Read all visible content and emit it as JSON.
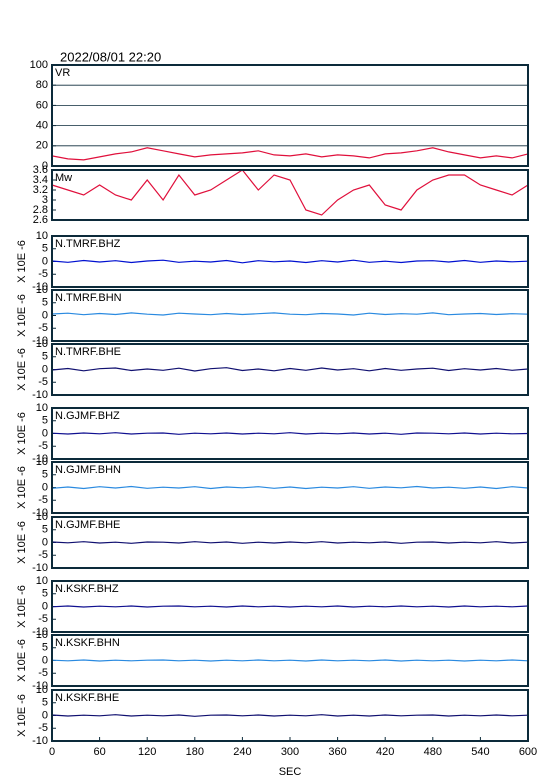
{
  "chart_data": [
    {
      "type": "line",
      "title": "2022/08/01 22:20",
      "xlim": [
        0,
        600
      ],
      "ylim": [
        0,
        100
      ],
      "yticks": [
        0,
        20,
        40,
        60,
        80,
        100
      ],
      "grid": true,
      "x": [
        0,
        20,
        40,
        60,
        80,
        100,
        120,
        140,
        160,
        180,
        200,
        220,
        240,
        260,
        280,
        300,
        320,
        340,
        360,
        380,
        400,
        420,
        440,
        460,
        480,
        500,
        520,
        540,
        560,
        580,
        600
      ],
      "series": [
        {
          "name": "VR",
          "color": "#e0103c",
          "values": [
            10,
            7,
            6,
            9,
            12,
            14,
            18,
            15,
            12,
            9,
            11,
            12,
            13,
            15,
            11,
            10,
            12,
            9,
            11,
            10,
            8,
            12,
            13,
            15,
            18,
            14,
            11,
            8,
            10,
            8,
            12
          ]
        }
      ]
    },
    {
      "type": "line",
      "xlim": [
        0,
        600
      ],
      "ylim": [
        2.6,
        3.6
      ],
      "yticks": [
        2.6,
        2.8,
        3.0,
        3.2,
        3.4,
        3.6
      ],
      "grid": false,
      "x": [
        0,
        20,
        40,
        60,
        80,
        100,
        120,
        140,
        160,
        180,
        200,
        220,
        240,
        260,
        280,
        300,
        320,
        340,
        360,
        380,
        400,
        420,
        440,
        460,
        480,
        500,
        520,
        540,
        560,
        580,
        600
      ],
      "series": [
        {
          "name": "Mw",
          "color": "#e0103c",
          "values": [
            3.3,
            3.2,
            3.1,
            3.3,
            3.1,
            3.0,
            3.4,
            3.0,
            3.5,
            3.1,
            3.2,
            3.4,
            3.6,
            3.2,
            3.5,
            3.4,
            2.8,
            2.7,
            3.0,
            3.2,
            3.3,
            2.9,
            2.8,
            3.2,
            3.4,
            3.5,
            3.5,
            3.3,
            3.2,
            3.1,
            3.3
          ]
        }
      ]
    },
    {
      "type": "line",
      "ylabel": "X 10E -6",
      "xlim": [
        0,
        600
      ],
      "ylim": [
        -10,
        10
      ],
      "yticks": [
        -10,
        -5,
        0,
        5,
        10
      ],
      "x": [
        0,
        20,
        40,
        60,
        80,
        100,
        120,
        140,
        160,
        180,
        200,
        220,
        240,
        260,
        280,
        300,
        320,
        340,
        360,
        380,
        400,
        420,
        440,
        460,
        480,
        500,
        520,
        540,
        560,
        580,
        600
      ],
      "series": [
        {
          "name": "N.TMRF.BHZ",
          "color": "#0010d0",
          "values": [
            0.2,
            -0.3,
            0.4,
            -0.2,
            0.3,
            -0.4,
            0.2,
            0.5,
            -0.3,
            0.1,
            -0.2,
            0.4,
            -0.5,
            0.3,
            -0.1,
            0.2,
            -0.4,
            0.3,
            -0.2,
            0.5,
            -0.3,
            0.1,
            -0.4,
            0.2,
            0.3,
            -0.2,
            0.4,
            -0.3,
            0.2,
            -0.1,
            0.1
          ]
        }
      ]
    },
    {
      "type": "line",
      "ylabel": "X 10E -6",
      "xlim": [
        0,
        600
      ],
      "ylim": [
        -10,
        10
      ],
      "yticks": [
        -10,
        -5,
        0,
        5,
        10
      ],
      "x": [
        0,
        20,
        40,
        60,
        80,
        100,
        120,
        140,
        160,
        180,
        200,
        220,
        240,
        260,
        280,
        300,
        320,
        340,
        360,
        380,
        400,
        420,
        440,
        460,
        480,
        500,
        520,
        540,
        560,
        580,
        600
      ],
      "series": [
        {
          "name": "N.TMRF.BHN",
          "color": "#2a8ae0",
          "values": [
            0.6,
            0.9,
            0.3,
            0.8,
            0.4,
            1.0,
            0.5,
            0.2,
            0.9,
            0.6,
            0.3,
            0.8,
            0.4,
            0.7,
            1.0,
            0.5,
            0.3,
            0.8,
            0.6,
            0.2,
            0.9,
            0.4,
            0.7,
            0.5,
            1.0,
            0.3,
            0.6,
            0.8,
            0.4,
            0.7,
            0.5
          ]
        }
      ]
    },
    {
      "type": "line",
      "ylabel": "X 10E -6",
      "xlim": [
        0,
        600
      ],
      "ylim": [
        -10,
        10
      ],
      "yticks": [
        -10,
        -5,
        0,
        5,
        10
      ],
      "x": [
        0,
        20,
        40,
        60,
        80,
        100,
        120,
        140,
        160,
        180,
        200,
        220,
        240,
        260,
        280,
        300,
        320,
        340,
        360,
        380,
        400,
        420,
        440,
        460,
        480,
        500,
        520,
        540,
        560,
        580,
        600
      ],
      "series": [
        {
          "name": "N.TMRF.BHE",
          "color": "#101070",
          "values": [
            -0.2,
            0.4,
            -0.5,
            0.3,
            0.6,
            -0.4,
            0.2,
            -0.3,
            0.5,
            -0.6,
            0.3,
            0.7,
            -0.4,
            0.2,
            -0.5,
            0.4,
            -0.3,
            0.6,
            -0.2,
            0.3,
            -0.5,
            0.4,
            -0.3,
            0.2,
            0.5,
            -0.4,
            0.3,
            -0.2,
            0.4,
            -0.3,
            0.2
          ]
        }
      ]
    },
    {
      "type": "line",
      "ylabel": "X 10E -6",
      "xlim": [
        0,
        600
      ],
      "ylim": [
        -10,
        10
      ],
      "yticks": [
        -10,
        -5,
        0,
        5,
        10
      ],
      "x": [
        0,
        20,
        40,
        60,
        80,
        100,
        120,
        140,
        160,
        180,
        200,
        220,
        240,
        260,
        280,
        300,
        320,
        340,
        360,
        380,
        400,
        420,
        440,
        460,
        480,
        500,
        520,
        540,
        560,
        580,
        600
      ],
      "series": [
        {
          "name": "N.GJMF.BHZ",
          "color": "#101090",
          "values": [
            0.1,
            -0.2,
            0.2,
            -0.1,
            0.3,
            -0.2,
            0.1,
            0.2,
            -0.3,
            0.1,
            -0.1,
            0.2,
            -0.2,
            0.1,
            -0.1,
            0.3,
            -0.2,
            0.1,
            -0.1,
            0.2,
            -0.2,
            0.1,
            -0.3,
            0.2,
            0.1,
            -0.1,
            0.2,
            -0.2,
            0.1,
            -0.1,
            0.0
          ]
        }
      ]
    },
    {
      "type": "line",
      "ylabel": "X 10E -6",
      "xlim": [
        0,
        600
      ],
      "ylim": [
        -10,
        10
      ],
      "yticks": [
        -10,
        -5,
        0,
        5,
        10
      ],
      "x": [
        0,
        20,
        40,
        60,
        80,
        100,
        120,
        140,
        160,
        180,
        200,
        220,
        240,
        260,
        280,
        300,
        320,
        340,
        360,
        380,
        400,
        420,
        440,
        460,
        480,
        500,
        520,
        540,
        560,
        580,
        600
      ],
      "series": [
        {
          "name": "N.GJMF.BHN",
          "color": "#2a8ae0",
          "values": [
            -0.3,
            0.2,
            -0.4,
            0.3,
            -0.2,
            0.4,
            -0.3,
            0.1,
            -0.2,
            0.3,
            -0.4,
            0.2,
            -0.1,
            0.3,
            -0.3,
            0.2,
            -0.4,
            0.1,
            -0.2,
            0.3,
            -0.3,
            0.2,
            -0.1,
            0.4,
            -0.2,
            0.1,
            -0.3,
            0.2,
            -0.4,
            0.3,
            -0.2
          ]
        }
      ]
    },
    {
      "type": "line",
      "ylabel": "X 10E -6",
      "xlim": [
        0,
        600
      ],
      "ylim": [
        -10,
        10
      ],
      "yticks": [
        -10,
        -5,
        0,
        5,
        10
      ],
      "x": [
        0,
        20,
        40,
        60,
        80,
        100,
        120,
        140,
        160,
        180,
        200,
        220,
        240,
        260,
        280,
        300,
        320,
        340,
        360,
        380,
        400,
        420,
        440,
        460,
        480,
        500,
        520,
        540,
        560,
        580,
        600
      ],
      "series": [
        {
          "name": "N.GJMF.BHE",
          "color": "#101070",
          "values": [
            0.2,
            -0.1,
            0.3,
            -0.2,
            0.1,
            -0.3,
            0.2,
            0.1,
            -0.2,
            0.3,
            -0.1,
            0.2,
            -0.3,
            0.1,
            -0.2,
            0.2,
            -0.1,
            0.3,
            -0.2,
            0.1,
            -0.1,
            0.2,
            -0.3,
            0.1,
            0.2,
            -0.2,
            0.1,
            -0.1,
            0.3,
            -0.2,
            0.1
          ]
        }
      ]
    },
    {
      "type": "line",
      "ylabel": "X 10E -6",
      "xlim": [
        0,
        600
      ],
      "ylim": [
        -10,
        10
      ],
      "yticks": [
        -10,
        -5,
        0,
        5,
        10
      ],
      "x": [
        0,
        20,
        40,
        60,
        80,
        100,
        120,
        140,
        160,
        180,
        200,
        220,
        240,
        260,
        280,
        300,
        320,
        340,
        360,
        380,
        400,
        420,
        440,
        460,
        480,
        500,
        520,
        540,
        560,
        580,
        600
      ],
      "series": [
        {
          "name": "N.KSKF.BHZ",
          "color": "#101090",
          "values": [
            -0.1,
            0.2,
            -0.2,
            0.1,
            -0.1,
            0.2,
            -0.2,
            0.1,
            0.2,
            -0.1,
            0.1,
            -0.2,
            0.2,
            -0.1,
            0.1,
            -0.2,
            0.1,
            -0.1,
            0.2,
            -0.2,
            0.1,
            -0.1,
            0.2,
            -0.1,
            0.1,
            -0.2,
            0.2,
            -0.1,
            0.1,
            -0.1,
            0.2
          ]
        }
      ]
    },
    {
      "type": "line",
      "ylabel": "X 10E -6",
      "xlim": [
        0,
        600
      ],
      "ylim": [
        -10,
        10
      ],
      "yticks": [
        -10,
        -5,
        0,
        5,
        10
      ],
      "x": [
        0,
        20,
        40,
        60,
        80,
        100,
        120,
        140,
        160,
        180,
        200,
        220,
        240,
        260,
        280,
        300,
        320,
        340,
        360,
        380,
        400,
        420,
        440,
        460,
        480,
        500,
        520,
        540,
        560,
        580,
        600
      ],
      "series": [
        {
          "name": "N.KSKF.BHN",
          "color": "#2a8ae0",
          "values": [
            0.1,
            -0.1,
            0.2,
            -0.2,
            0.1,
            -0.1,
            0.1,
            0.2,
            -0.1,
            0.1,
            -0.2,
            0.1,
            -0.1,
            0.2,
            -0.1,
            0.1,
            -0.2,
            0.2,
            -0.1,
            0.1,
            -0.1,
            0.2,
            -0.2,
            0.1,
            -0.1,
            0.1,
            -0.2,
            0.1,
            -0.1,
            0.2,
            -0.1
          ]
        }
      ]
    },
    {
      "type": "line",
      "ylabel": "X 10E -6",
      "xlabel": "SEC",
      "xlim": [
        0,
        600
      ],
      "ylim": [
        -10,
        10
      ],
      "yticks": [
        -10,
        -5,
        0,
        5,
        10
      ],
      "xticks": [
        0,
        60,
        120,
        180,
        240,
        300,
        360,
        420,
        480,
        540,
        600
      ],
      "x": [
        0,
        20,
        40,
        60,
        80,
        100,
        120,
        140,
        160,
        180,
        200,
        220,
        240,
        260,
        280,
        300,
        320,
        340,
        360,
        380,
        400,
        420,
        440,
        460,
        480,
        500,
        520,
        540,
        560,
        580,
        600
      ],
      "series": [
        {
          "name": "N.KSKF.BHE",
          "color": "#101070",
          "values": [
            0.2,
            -0.2,
            0.1,
            -0.1,
            0.3,
            -0.2,
            0.1,
            -0.1,
            0.2,
            -0.3,
            0.1,
            0.2,
            -0.1,
            0.2,
            -0.2,
            0.1,
            -0.1,
            0.3,
            -0.2,
            0.1,
            -0.2,
            0.2,
            -0.1,
            0.1,
            0.2,
            -0.2,
            0.1,
            -0.1,
            0.2,
            -0.1,
            0.1
          ]
        }
      ]
    }
  ]
}
